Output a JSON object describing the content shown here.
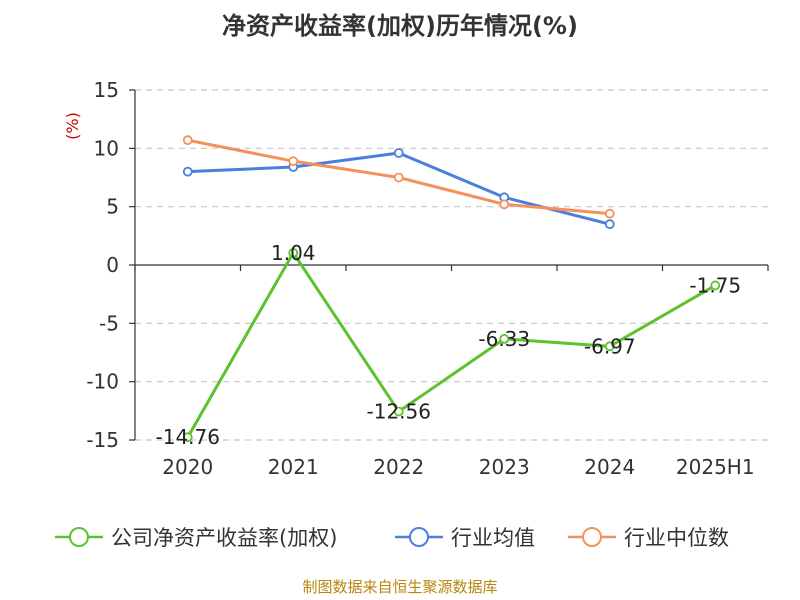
{
  "chart_data": {
    "type": "line",
    "title": "净资产收益率(加权)历年情况(%)",
    "ylabel": "(%)",
    "categories": [
      "2020",
      "2021",
      "2022",
      "2023",
      "2024",
      "2025H1"
    ],
    "ylim": [
      -15,
      15
    ],
    "yticks": [
      15,
      10,
      5,
      0,
      -5,
      -10,
      -15
    ],
    "grid": true,
    "legend_position": "bottom",
    "series": [
      {
        "name": "公司净资产收益率(加权)",
        "color": "#5cc22e",
        "values": [
          -14.76,
          1.04,
          -12.56,
          -6.33,
          -6.97,
          -1.75
        ],
        "labels": [
          "-14.76",
          "1.04",
          "-12.56",
          "-6.33",
          "-6.97",
          "-1.75"
        ]
      },
      {
        "name": "行业均值",
        "color": "#4a7fdc",
        "values": [
          8.0,
          8.4,
          9.6,
          5.8,
          3.5,
          null
        ]
      },
      {
        "name": "行业中位数",
        "color": "#f5905a",
        "values": [
          10.7,
          8.9,
          7.5,
          5.2,
          4.4,
          null
        ]
      }
    ],
    "source": "制图数据来自恒生聚源数据库"
  }
}
